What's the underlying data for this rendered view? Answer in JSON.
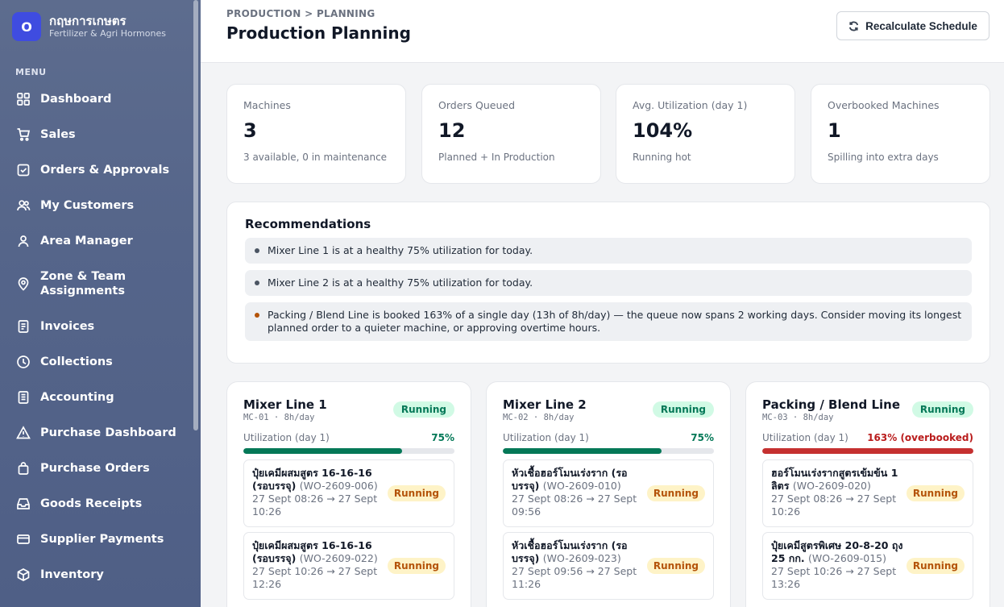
{
  "brand": {
    "logo_letter": "O",
    "name": "กฤษการเกษตร",
    "subtitle": "Fertilizer & Agri Hormones"
  },
  "sidebar": {
    "menu_label": "MENU",
    "items": [
      {
        "label": "Dashboard",
        "icon": "grid-icon"
      },
      {
        "label": "Sales",
        "icon": "cart-icon"
      },
      {
        "label": "Orders & Approvals",
        "icon": "check-square-icon"
      },
      {
        "label": "My Customers",
        "icon": "users-icon"
      },
      {
        "label": "Area Manager",
        "icon": "user-icon"
      },
      {
        "label": "Zone & Team Assignments",
        "icon": "map-pin-icon"
      },
      {
        "label": "Invoices",
        "icon": "document-icon"
      },
      {
        "label": "Collections",
        "icon": "clock-icon"
      },
      {
        "label": "Accounting",
        "icon": "ledger-icon"
      },
      {
        "label": "Purchase Dashboard",
        "icon": "warning-icon"
      },
      {
        "label": "Purchase Orders",
        "icon": "bag-icon"
      },
      {
        "label": "Goods Receipts",
        "icon": "inbox-icon"
      },
      {
        "label": "Supplier Payments",
        "icon": "credit-card-icon"
      },
      {
        "label": "Inventory",
        "icon": "box-icon"
      }
    ]
  },
  "header": {
    "breadcrumb": "PRODUCTION > PLANNING",
    "title": "Production Planning",
    "recalc_label": "Recalculate Schedule"
  },
  "stats": [
    {
      "label": "Machines",
      "value": "3",
      "sub": "3 available, 0 in maintenance"
    },
    {
      "label": "Orders Queued",
      "value": "12",
      "sub": "Planned + In Production"
    },
    {
      "label": "Avg. Utilization (day 1)",
      "value": "104%",
      "sub": "Running hot"
    },
    {
      "label": "Overbooked Machines",
      "value": "1",
      "sub": "Spilling into extra days"
    }
  ],
  "recommendations": {
    "title": "Recommendations",
    "items": [
      "Mixer Line 1 is at a healthy 75% utilization for today.",
      "Mixer Line 2 is at a healthy 75% utilization for today.",
      "Packing / Blend Line is booked 163% of a single day (13h of 8h/day) — the queue now spans 2 working days. Consider moving its longest planned order to a quieter machine, or approving overtime hours."
    ]
  },
  "machines": [
    {
      "name": "Mixer Line 1",
      "code": "MC-01 · 8h/day",
      "status": "Running",
      "util_label": "Utilization (day 1)",
      "util_text": "75%",
      "util_fraction": 0.75,
      "orders": [
        {
          "title": "ปุ๋ยเคมีผสมสูตร 16-16-16 (รอบรรจุ)",
          "wo": "(WO-2609-006)",
          "time": "27 Sept 08:26 → 27 Sept 10:26",
          "status": "Running"
        },
        {
          "title": "ปุ๋ยเคมีผสมสูตร 16-16-16 (รอบรรจุ)",
          "wo": "(WO-2609-022)",
          "time": "27 Sept 10:26 → 27 Sept 12:26",
          "status": "Running"
        }
      ]
    },
    {
      "name": "Mixer Line 2",
      "code": "MC-02 · 8h/day",
      "status": "Running",
      "util_label": "Utilization (day 1)",
      "util_text": "75%",
      "util_fraction": 0.75,
      "orders": [
        {
          "title": "หัวเชื้อฮอร์โมนเร่งราก (รอบรรจุ)",
          "wo": "(WO-2609-010)",
          "time": "27 Sept 08:26 → 27 Sept 09:56",
          "status": "Running"
        },
        {
          "title": "หัวเชื้อฮอร์โมนเร่งราก (รอบรรจุ)",
          "wo": "(WO-2609-023)",
          "time": "27 Sept 09:56 → 27 Sept 11:26",
          "status": "Running"
        }
      ]
    },
    {
      "name": "Packing / Blend Line",
      "code": "MC-03 · 8h/day",
      "status": "Running",
      "util_label": "Utilization (day 1)",
      "util_text": "163% (overbooked)",
      "util_fraction": 1.0,
      "orders": [
        {
          "title": "ฮอร์โมนเร่งรากสูตรเข้มข้น 1 ลิตร",
          "wo": "(WO-2609-020)",
          "time": "27 Sept 08:26 → 27 Sept 10:26",
          "status": "Running"
        },
        {
          "title": "ปุ๋ยเคมีสูตรพิเศษ 20-8-20 ถุง 25 กก.",
          "wo": "(WO-2609-015)",
          "time": "27 Sept 10:26 → 27 Sept 13:26",
          "status": "Running"
        }
      ]
    }
  ],
  "colors": {
    "accent": "#3f4ce0",
    "success": "#047857",
    "danger": "#c53030",
    "warning": "#b45309"
  }
}
